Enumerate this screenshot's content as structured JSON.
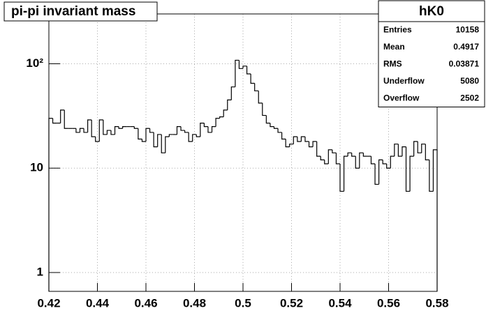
{
  "chart_data": {
    "type": "histogram",
    "title": "pi-pi invariant mass",
    "color": "#000000",
    "bins": [
      0.42,
      0.4216,
      0.4232,
      0.4248,
      0.4264,
      0.428,
      0.4296,
      0.4312,
      0.4328,
      0.4344,
      0.436,
      0.4376,
      0.4392,
      0.4408,
      0.4424,
      0.444,
      0.4456,
      0.4472,
      0.4488,
      0.4504,
      0.452,
      0.4536,
      0.4552,
      0.4568,
      0.4584,
      0.46,
      0.4616,
      0.4632,
      0.4648,
      0.4664,
      0.468,
      0.4696,
      0.4712,
      0.4728,
      0.4744,
      0.476,
      0.4776,
      0.4792,
      0.4808,
      0.4824,
      0.484,
      0.4856,
      0.4872,
      0.4888,
      0.4904,
      0.492,
      0.4936,
      0.4952,
      0.4968,
      0.4984,
      0.5,
      0.5016,
      0.5032,
      0.5048,
      0.5064,
      0.508,
      0.5096,
      0.5112,
      0.5128,
      0.5144,
      0.516,
      0.5176,
      0.5192,
      0.5208,
      0.5224,
      0.524,
      0.5256,
      0.5272,
      0.5288,
      0.5304,
      0.532,
      0.5336,
      0.5352,
      0.5368,
      0.5384,
      0.54,
      0.5416,
      0.5432,
      0.5448,
      0.5464,
      0.548,
      0.5496,
      0.5512,
      0.5528,
      0.5544,
      0.556,
      0.5576,
      0.5592,
      0.5608,
      0.5624,
      0.564,
      0.5656,
      0.5672,
      0.5688,
      0.5704,
      0.572,
      0.5736,
      0.5752,
      0.5768,
      0.5784,
      0.58
    ],
    "values": [
      30,
      27,
      27,
      36,
      24,
      24,
      24,
      22,
      24,
      22,
      29,
      20,
      18,
      29,
      21,
      23,
      21,
      25,
      24,
      25,
      25,
      25,
      24,
      19,
      18,
      24,
      22,
      16,
      21,
      14,
      20,
      21,
      21,
      25,
      23,
      22,
      18,
      21,
      20,
      27,
      25,
      22,
      25,
      30,
      31,
      36,
      45,
      60,
      108,
      90,
      95,
      80,
      65,
      55,
      42,
      32,
      27,
      25,
      24,
      22,
      19,
      16,
      17,
      20,
      18,
      20,
      18,
      16,
      18,
      13,
      12,
      11,
      15,
      14,
      11,
      6,
      13,
      14,
      13,
      10,
      14,
      13,
      13,
      11,
      7,
      12,
      11,
      10,
      13,
      17,
      13,
      16,
      6,
      13,
      18,
      14,
      17,
      12,
      6,
      15
    ],
    "xlim": [
      0.42,
      0.58
    ],
    "xticks": [
      0.42,
      0.44,
      0.46,
      0.48,
      0.5,
      0.52,
      0.54,
      0.56,
      0.58
    ],
    "ylim": [
      0.66,
      300
    ],
    "log_y": true,
    "yticks": [
      1,
      10,
      {
        "value": 100,
        "label": "10²"
      }
    ],
    "grid": true,
    "stats": {
      "name": "hK0",
      "rows": [
        {
          "label": "Entries",
          "value": "10158"
        },
        {
          "label": "Mean",
          "value": "0.4917"
        },
        {
          "label": "RMS",
          "value": "0.03871"
        },
        {
          "label": "Underflow",
          "value": "5080"
        },
        {
          "label": "Overflow",
          "value": "2502"
        }
      ]
    }
  }
}
